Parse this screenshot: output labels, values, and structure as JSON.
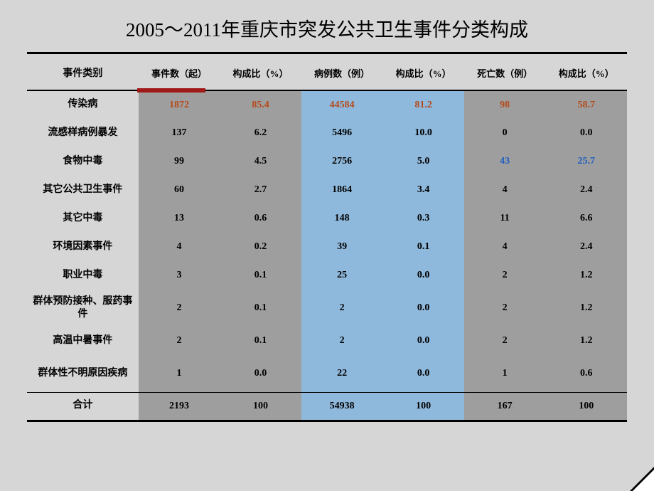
{
  "title": "2005～2011年重庆市突发公共卫生事件分类构成",
  "columns": {
    "category": "事件类别",
    "events": "事件数（起）",
    "events_ratio": "构成比（%）",
    "cases": "病例数（例）",
    "cases_ratio": "构成比（%）",
    "deaths": "死亡数（例）",
    "deaths_ratio": "构成比（%）"
  },
  "styling": {
    "page_bg": "#d6d6d6",
    "col_bg_gray": "#9e9e9e",
    "col_bg_blue": "#8fb9dc",
    "highlight_text_red": "#b54a1a",
    "highlight_text_blue": "#1f5fbf",
    "red_underline": "#a01818",
    "border_color": "#000000",
    "title_fontsize": 27,
    "header_fontsize": 13,
    "cell_fontsize": 14
  },
  "rows": [
    {
      "cat": "传染病",
      "events": "1872",
      "events_ratio": "85.4",
      "cases": "44584",
      "cases_ratio": "81.2",
      "deaths": "98",
      "deaths_ratio": "58.7",
      "style": "red"
    },
    {
      "cat": "流感样病例暴发",
      "events": "137",
      "events_ratio": "6.2",
      "cases": "5496",
      "cases_ratio": "10.0",
      "deaths": "0",
      "deaths_ratio": "0.0"
    },
    {
      "cat": "食物中毒",
      "events": "99",
      "events_ratio": "4.5",
      "cases": "2756",
      "cases_ratio": "5.0",
      "deaths": "43",
      "deaths_ratio": "25.7",
      "deaths_style": "blue",
      "deaths_ratio_style": "blue"
    },
    {
      "cat": "其它公共卫生事件",
      "events": "60",
      "events_ratio": "2.7",
      "cases": "1864",
      "cases_ratio": "3.4",
      "deaths": "4",
      "deaths_ratio": "2.4"
    },
    {
      "cat": "其它中毒",
      "events": "13",
      "events_ratio": "0.6",
      "cases": "148",
      "cases_ratio": "0.3",
      "deaths": "11",
      "deaths_ratio": "6.6"
    },
    {
      "cat": "环境因素事件",
      "events": "4",
      "events_ratio": "0.2",
      "cases": "39",
      "cases_ratio": "0.1",
      "deaths": "4",
      "deaths_ratio": "2.4"
    },
    {
      "cat": "职业中毒",
      "events": "3",
      "events_ratio": "0.1",
      "cases": "25",
      "cases_ratio": "0.0",
      "deaths": "2",
      "deaths_ratio": "1.2"
    },
    {
      "cat": "群体预防接种、服药事件",
      "events": "2",
      "events_ratio": "0.1",
      "cases": "2",
      "cases_ratio": "0.0",
      "deaths": "2",
      "deaths_ratio": "1.2",
      "tall": true
    },
    {
      "cat": "高温中暑事件",
      "events": "2",
      "events_ratio": "0.1",
      "cases": "2",
      "cases_ratio": "0.0",
      "deaths": "2",
      "deaths_ratio": "1.2"
    },
    {
      "cat": "群体性不明原因疾病",
      "events": "1",
      "events_ratio": "0.0",
      "cases": "22",
      "cases_ratio": "0.0",
      "deaths": "1",
      "deaths_ratio": "0.6",
      "tall": true
    }
  ],
  "total": {
    "cat": "合计",
    "events": "2193",
    "events_ratio": "100",
    "cases": "54938",
    "cases_ratio": "100",
    "deaths": "167",
    "deaths_ratio": "100"
  }
}
